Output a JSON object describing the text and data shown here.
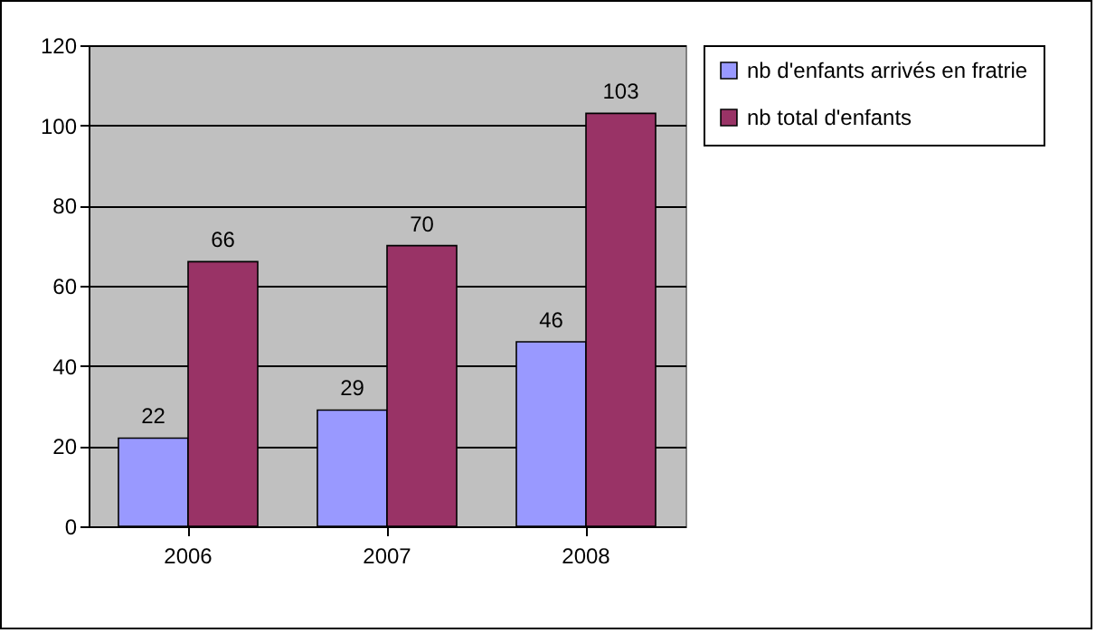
{
  "chart_data": {
    "type": "bar",
    "categories": [
      "2006",
      "2007",
      "2008"
    ],
    "series": [
      {
        "name": "nb d'enfants arrivés en fratrie",
        "color": "#9999ff",
        "values": [
          22,
          29,
          46
        ]
      },
      {
        "name": "nb total d'enfants",
        "color": "#993366",
        "values": [
          66,
          70,
          103
        ]
      }
    ],
    "ylim": [
      0,
      120
    ],
    "yticks": [
      0,
      20,
      40,
      60,
      80,
      100,
      120
    ],
    "grid": "y",
    "legend": "right",
    "data_labels": true
  }
}
